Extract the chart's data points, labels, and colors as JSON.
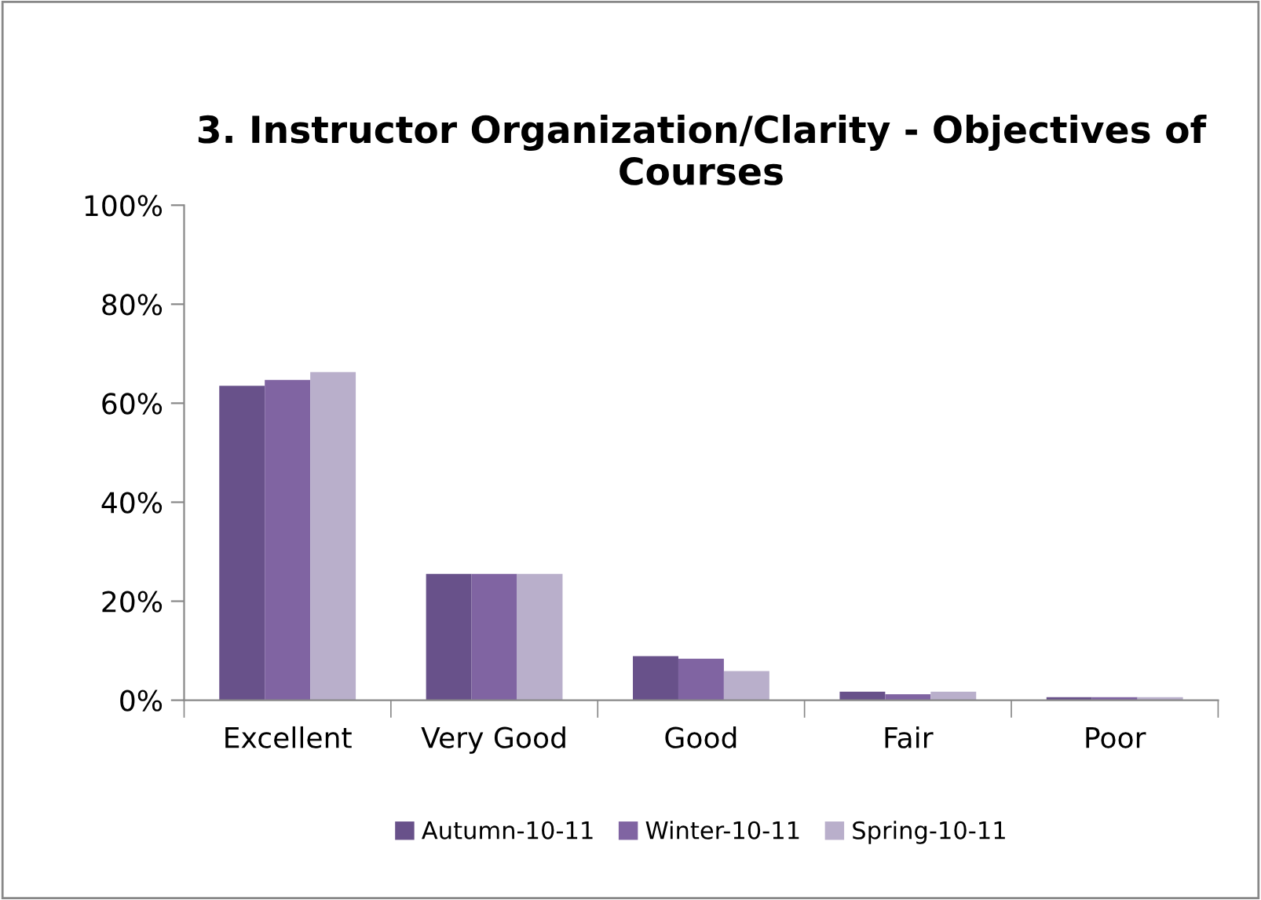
{
  "chart_data": {
    "type": "bar",
    "title": "3. Instructor Organization/Clarity - Objectives of Courses",
    "categories": [
      "Excellent",
      "Very Good",
      "Good",
      "Fair",
      "Poor"
    ],
    "series": [
      {
        "name": "Autumn-10-11",
        "color": "#68518a",
        "values": [
          63.5,
          25.5,
          8.9,
          1.7,
          0.6
        ]
      },
      {
        "name": "Winter-10-11",
        "color": "#8064a2",
        "values": [
          64.7,
          25.5,
          8.4,
          1.2,
          0.6
        ]
      },
      {
        "name": "Spring-10-11",
        "color": "#b9afcb",
        "values": [
          66.3,
          25.5,
          5.9,
          1.7,
          0.6
        ]
      }
    ],
    "ylim": [
      0,
      100
    ],
    "yticks": [
      {
        "value": 0,
        "label": "0%"
      },
      {
        "value": 20,
        "label": "20%"
      },
      {
        "value": 40,
        "label": "40%"
      },
      {
        "value": 60,
        "label": "60%"
      },
      {
        "value": 80,
        "label": "80%"
      },
      {
        "value": 100,
        "label": "100%"
      }
    ],
    "grid": false,
    "legend": "bottom"
  }
}
